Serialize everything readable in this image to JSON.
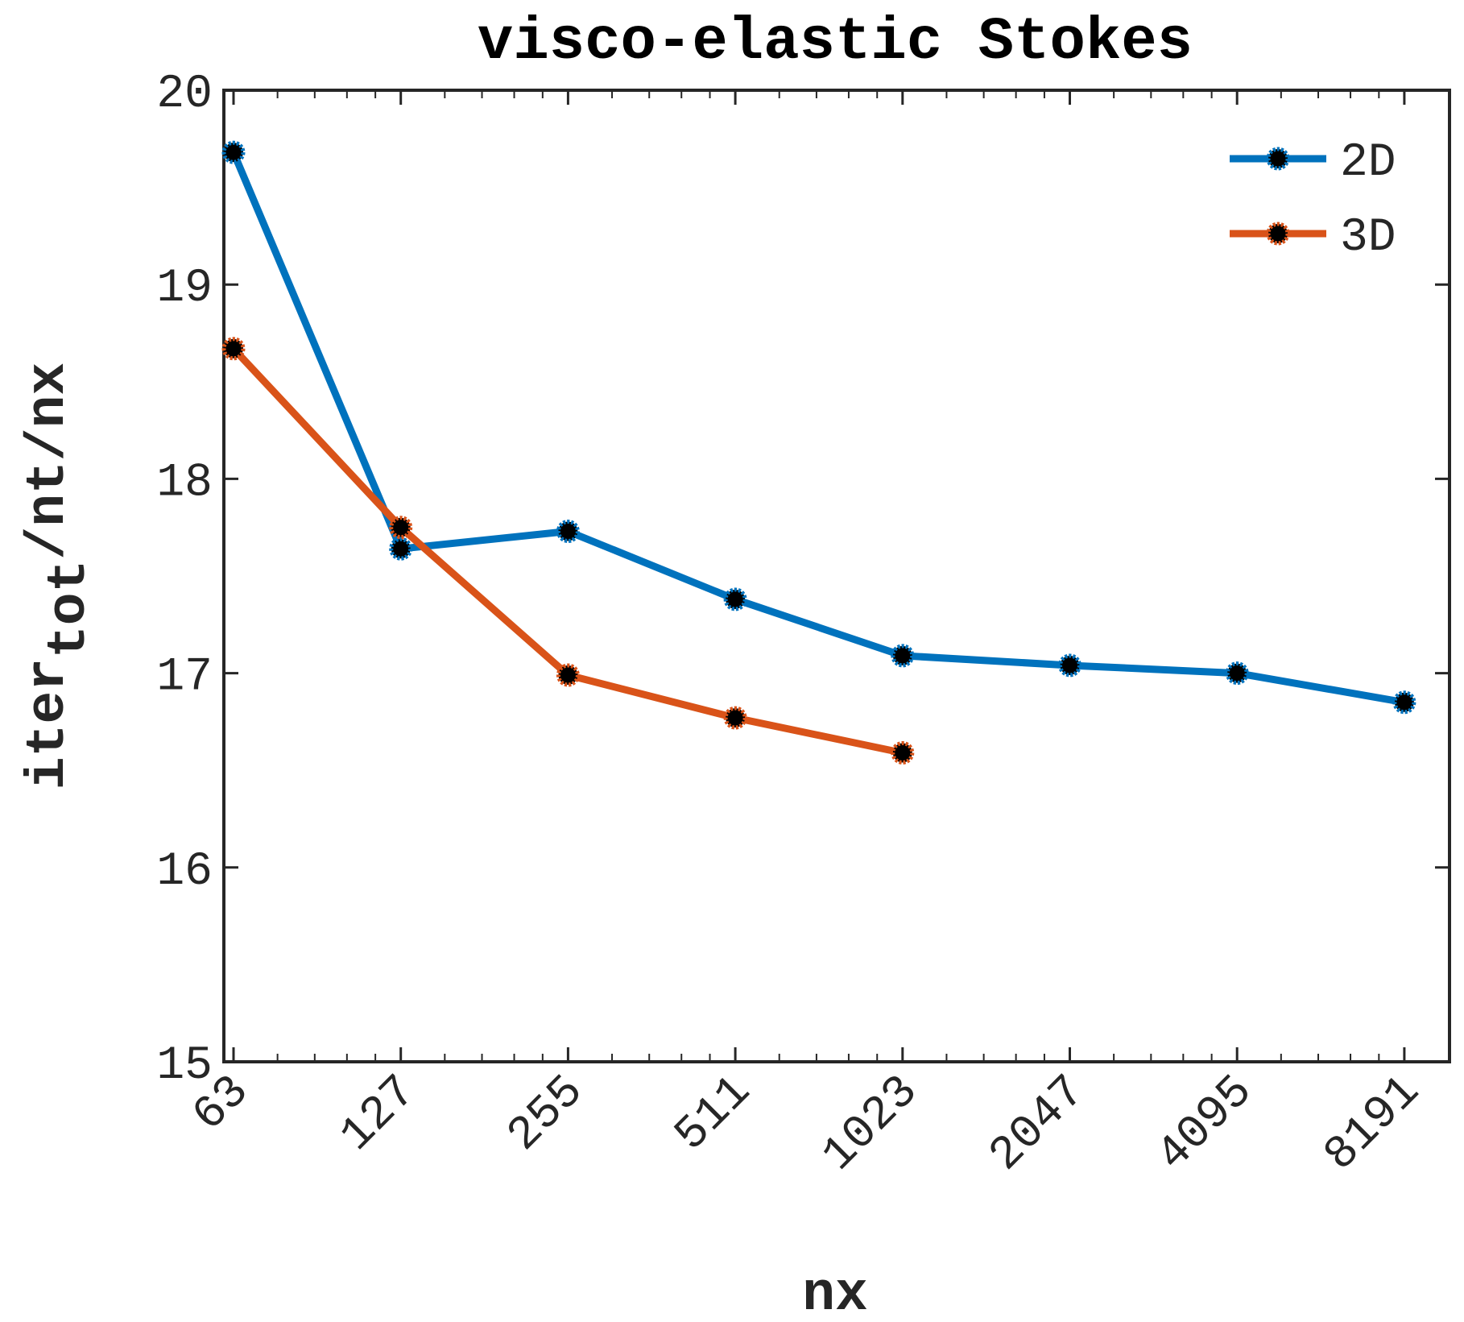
{
  "chart_data": {
    "type": "line",
    "title": "visco-elastic Stokes",
    "xlabel": "nx",
    "ylabel": {
      "base": "iter",
      "subscript": "tot",
      "suffix": "/nt/nx"
    },
    "x_scale": "log2",
    "x_ticks": [
      "63",
      "127",
      "255",
      "511",
      "1023",
      "2047",
      "4095",
      "8191"
    ],
    "y_ticks": [
      "15",
      "16",
      "17",
      "18",
      "19",
      "20"
    ],
    "ylim": [
      15,
      20
    ],
    "grid": false,
    "legend_position": "top-right",
    "series": [
      {
        "name": "2D",
        "color": "#0072BD",
        "x": [
          63,
          127,
          255,
          511,
          1023,
          2047,
          4095,
          8191
        ],
        "values": [
          19.68,
          17.64,
          17.73,
          17.38,
          17.09,
          17.04,
          17.0,
          16.85
        ]
      },
      {
        "name": "3D",
        "color": "#D95319",
        "x": [
          63,
          127,
          255,
          511,
          1023
        ],
        "values": [
          18.67,
          17.75,
          16.99,
          16.77,
          16.59
        ]
      }
    ]
  }
}
